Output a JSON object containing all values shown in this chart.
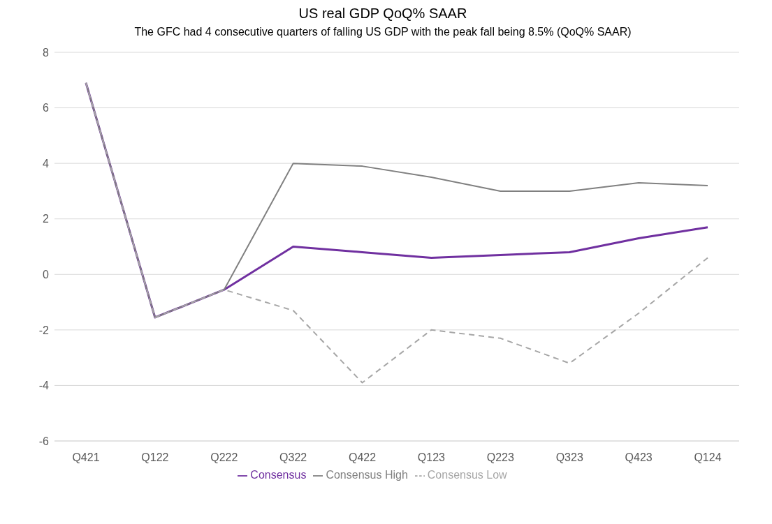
{
  "chart_data": {
    "type": "line",
    "title": "US real GDP QoQ% SAAR",
    "subtitle": "The GFC had 4 consecutive quarters of falling US GDP with the peak fall being 8.5% (QoQ% SAAR)",
    "categories": [
      "Q421",
      "Q122",
      "Q222",
      "Q322",
      "Q422",
      "Q123",
      "Q223",
      "Q323",
      "Q423",
      "Q124"
    ],
    "series": [
      {
        "name": "Consensus",
        "color": "#7030a0",
        "values": [
          6.9,
          -1.55,
          -0.55,
          1.0,
          0.8,
          0.6,
          0.7,
          0.8,
          1.3,
          1.7
        ]
      },
      {
        "name": "Consensus High",
        "color": "#808080",
        "values": [
          6.9,
          -1.55,
          -0.55,
          4.0,
          3.9,
          3.5,
          3.0,
          3.0,
          3.3,
          3.2
        ]
      },
      {
        "name": "Consensus Low",
        "color": "#a6a6a6",
        "line_style": "dashed",
        "values": [
          6.9,
          -1.55,
          -0.55,
          -1.3,
          -3.9,
          -2.0,
          -2.3,
          -3.2,
          -1.4,
          0.6
        ]
      }
    ],
    "ylim": [
      -6,
      8
    ],
    "yticks": [
      -6,
      -4,
      -2,
      0,
      2,
      4,
      6,
      8
    ],
    "grid": "y",
    "legend": "bottom",
    "marker": "none"
  }
}
